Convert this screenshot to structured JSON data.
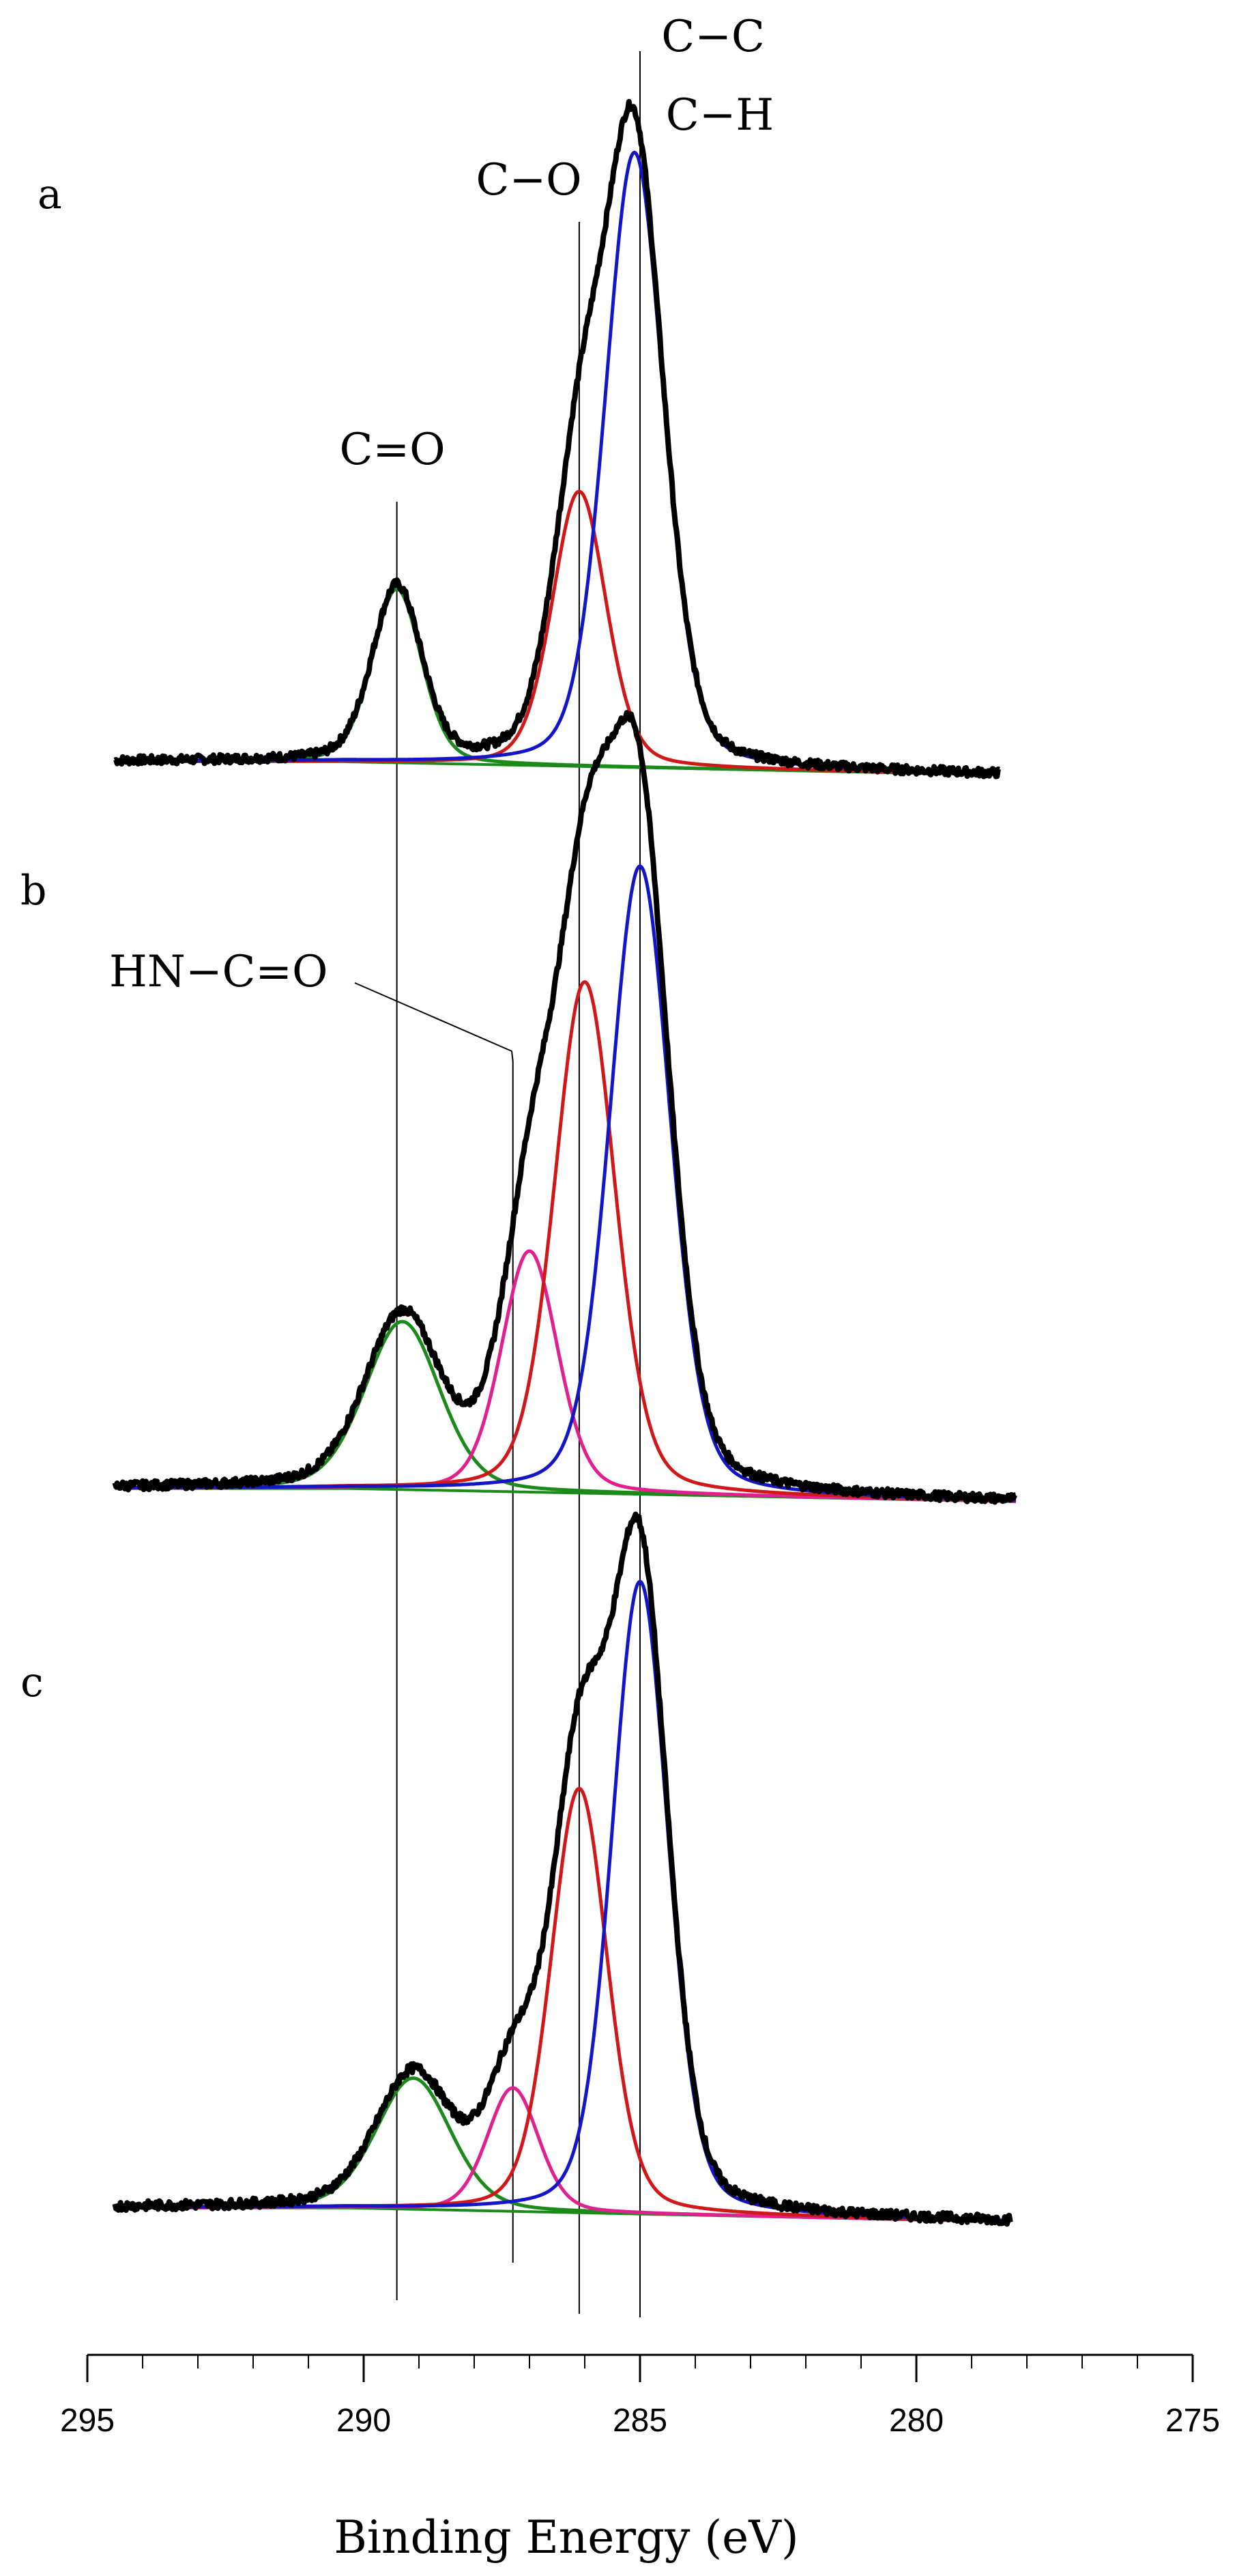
{
  "chart_data": {
    "type": "line",
    "xlabel": "Binding Energy (eV)",
    "xlim": [
      295,
      275
    ],
    "x_reversed": true,
    "x_ticks": [
      295,
      290,
      285,
      280,
      275
    ],
    "reference_lines": [
      {
        "label": "C=O",
        "x": 289.4
      },
      {
        "label": "HN−C=O",
        "x": 287.3
      },
      {
        "label": "C−O",
        "x": 286.1
      },
      {
        "label": "C−C",
        "x": 285.0
      },
      {
        "label": "C−H",
        "x": 285.0
      }
    ],
    "colors": {
      "envelope": "#000000",
      "CC_CH": "#1515c8",
      "CO": "#d01818",
      "C_eq_O": "#1a8a1a",
      "HNCO": "#e0208e",
      "background": "#1a8a1a"
    },
    "panels": [
      {
        "label": "a",
        "x_range": [
          294.5,
          278.5
        ],
        "components": [
          {
            "key": "CC_CH",
            "center": 285.1,
            "height": 0.85,
            "fwhm": 1.25
          },
          {
            "key": "CO",
            "center": 286.1,
            "height": 0.38,
            "fwhm": 1.15
          },
          {
            "key": "C_eq_O",
            "center": 289.4,
            "height": 0.24,
            "fwhm": 1.05
          }
        ]
      },
      {
        "label": "b",
        "x_range": [
          294.5,
          278.2
        ],
        "components": [
          {
            "key": "CC_CH",
            "center": 285.0,
            "height": 0.86,
            "fwhm": 1.3
          },
          {
            "key": "CO",
            "center": 286.0,
            "height": 0.7,
            "fwhm": 1.3
          },
          {
            "key": "HNCO",
            "center": 287.0,
            "height": 0.33,
            "fwhm": 1.2
          },
          {
            "key": "C_eq_O",
            "center": 289.3,
            "height": 0.23,
            "fwhm": 1.6
          }
        ]
      },
      {
        "label": "c",
        "x_range": [
          294.5,
          278.3
        ],
        "components": [
          {
            "key": "CC_CH",
            "center": 285.0,
            "height": 0.82,
            "fwhm": 1.2
          },
          {
            "key": "CO",
            "center": 286.1,
            "height": 0.55,
            "fwhm": 1.2
          },
          {
            "key": "HNCO",
            "center": 287.3,
            "height": 0.16,
            "fwhm": 1.1
          },
          {
            "key": "C_eq_O",
            "center": 289.1,
            "height": 0.17,
            "fwhm": 1.6
          }
        ]
      }
    ]
  }
}
